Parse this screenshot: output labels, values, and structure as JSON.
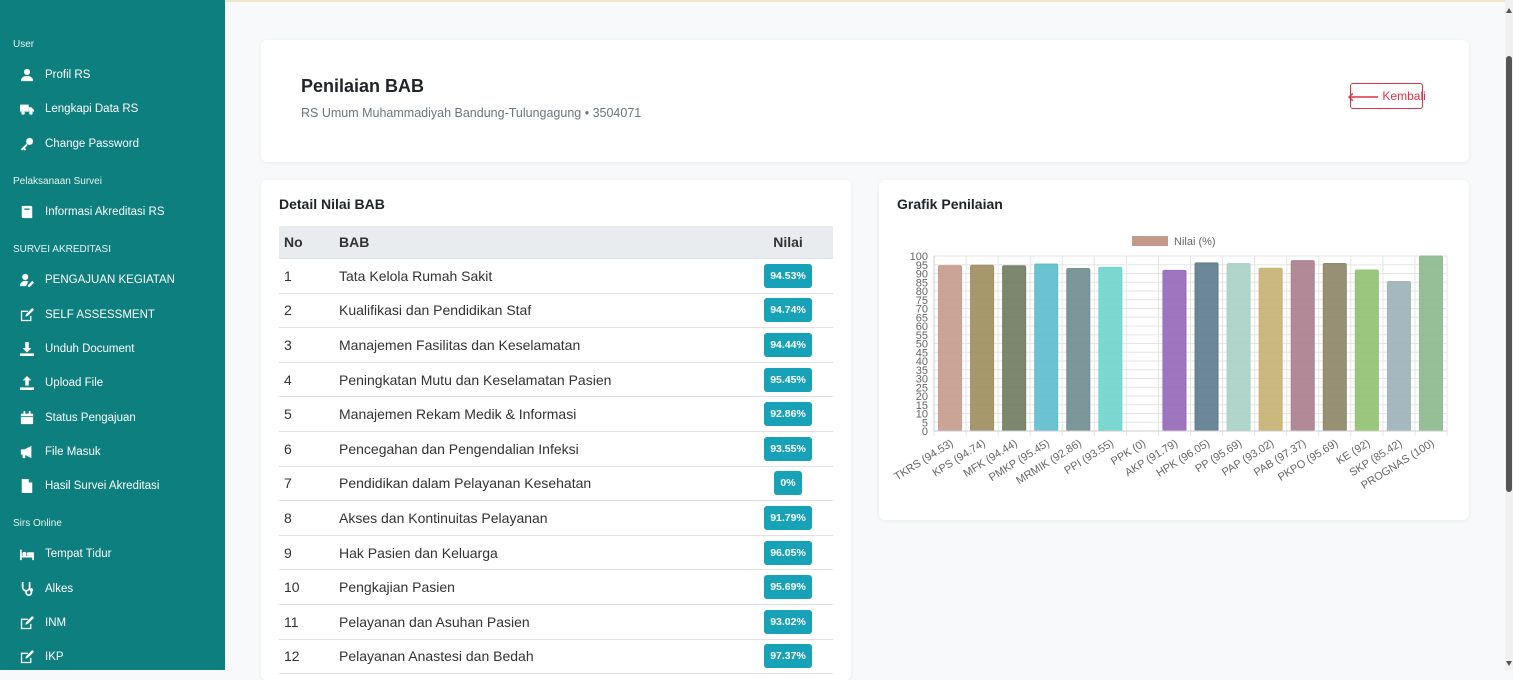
{
  "sidebar": {
    "sections": [
      {
        "label": "User",
        "items": [
          {
            "label": "Profil RS",
            "icon": "user-icon"
          },
          {
            "label": "Lengkapi Data RS",
            "icon": "truck-icon"
          },
          {
            "label": "Change Password",
            "icon": "key-icon"
          }
        ]
      },
      {
        "label": "Pelaksanaan Survei",
        "items": [
          {
            "label": "Informasi Akreditasi RS",
            "icon": "book-icon"
          }
        ]
      },
      {
        "label": "SURVEI AKREDITASI",
        "items": [
          {
            "label": "PENGAJUAN KEGIATAN",
            "icon": "user-edit-icon"
          },
          {
            "label": "SELF ASSESSMENT",
            "icon": "edit-icon"
          },
          {
            "label": "Unduh Document",
            "icon": "download-icon"
          },
          {
            "label": "Upload File",
            "icon": "upload-icon"
          },
          {
            "label": "Status Pengajuan",
            "icon": "calendar-icon"
          },
          {
            "label": "File Masuk",
            "icon": "megaphone-icon"
          },
          {
            "label": "Hasil Survei Akreditasi",
            "icon": "file-icon"
          }
        ]
      },
      {
        "label": "Sirs Online",
        "items": [
          {
            "label": "Tempat Tidur",
            "icon": "bed-icon"
          },
          {
            "label": "Alkes",
            "icon": "stethoscope-icon"
          },
          {
            "label": "INM",
            "icon": "edit-icon"
          },
          {
            "label": "IKP",
            "icon": "edit-icon"
          }
        ]
      }
    ]
  },
  "header": {
    "title": "Penilaian BAB",
    "subtitle": "RS Umum Muhammadiyah Bandung-Tulungagung • 3504071",
    "back_label": "Kembali",
    "back_arrow": "🡐"
  },
  "detail": {
    "title": "Detail Nilai BAB",
    "columns": {
      "no": "No",
      "bab": "BAB",
      "nilai": "Nilai"
    },
    "rows": [
      {
        "no": "1",
        "bab": "Tata Kelola Rumah Sakit",
        "nilai": "94.53%"
      },
      {
        "no": "2",
        "bab": "Kualifikasi dan Pendidikan Staf",
        "nilai": "94.74%"
      },
      {
        "no": "3",
        "bab": "Manajemen Fasilitas dan Keselamatan",
        "nilai": "94.44%"
      },
      {
        "no": "4",
        "bab": "Peningkatan Mutu dan Keselamatan Pasien",
        "nilai": "95.45%"
      },
      {
        "no": "5",
        "bab": "Manajemen Rekam Medik & Informasi",
        "nilai": "92.86%"
      },
      {
        "no": "6",
        "bab": "Pencegahan dan Pengendalian Infeksi",
        "nilai": "93.55%"
      },
      {
        "no": "7",
        "bab": "Pendidikan dalam Pelayanan Kesehatan",
        "nilai": "0%"
      },
      {
        "no": "8",
        "bab": "Akses dan Kontinuitas Pelayanan",
        "nilai": "91.79%"
      },
      {
        "no": "9",
        "bab": "Hak Pasien dan Keluarga",
        "nilai": "96.05%"
      },
      {
        "no": "10",
        "bab": "Pengkajian Pasien",
        "nilai": "95.69%"
      },
      {
        "no": "11",
        "bab": "Pelayanan dan Asuhan Pasien",
        "nilai": "93.02%"
      },
      {
        "no": "12",
        "bab": "Pelayanan Anastesi dan Bedah",
        "nilai": "97.37%"
      }
    ]
  },
  "chart_title": "Grafik Penilaian",
  "chart_data": {
    "type": "bar",
    "title": "",
    "legend": {
      "label": "Nilai (%)",
      "position": "top",
      "color": "#c49a8c"
    },
    "categories": [
      "TKRS (94.53)",
      "KPS (94.74)",
      "MFK (94.44)",
      "PMKP (95.45)",
      "MRMIK (92.86)",
      "PPI (93.55)",
      "PPK (0)",
      "AKP (91.79)",
      "HPK (96.05)",
      "PP (95.69)",
      "PAP (93.02)",
      "PAB (97.37)",
      "PKPO (95.69)",
      "KE (92)",
      "SKP (85.42)",
      "PROGNAS (100)"
    ],
    "values": [
      94.53,
      94.74,
      94.44,
      95.45,
      92.86,
      93.55,
      0,
      91.79,
      96.05,
      95.69,
      93.02,
      97.37,
      95.69,
      92,
      85.42,
      100
    ],
    "colors": [
      "#c49a8c",
      "#9c8c5c",
      "#6e7a5e",
      "#5bbccc",
      "#6e8c8c",
      "#6cd4cc",
      "#888888",
      "#9466b8",
      "#5c7a8c",
      "#a8d0c4",
      "#c4b070",
      "#a87c8c",
      "#8c8466",
      "#90c070",
      "#9cb0b8",
      "#8cb88c"
    ],
    "ylim": [
      0,
      100
    ],
    "yticks": [
      "0",
      "5",
      "10",
      "15",
      "20",
      "25",
      "30",
      "35",
      "40",
      "45",
      "50",
      "55",
      "60",
      "65",
      "70",
      "75",
      "80",
      "85",
      "90",
      "95",
      "100"
    ],
    "grid": true
  }
}
